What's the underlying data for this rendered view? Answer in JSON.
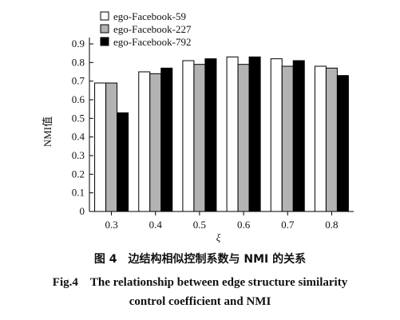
{
  "chart_data": {
    "type": "bar",
    "categories": [
      "0.3",
      "0.4",
      "0.5",
      "0.6",
      "0.7",
      "0.8"
    ],
    "series": [
      {
        "name": "ego-Facebook-59",
        "values": [
          0.69,
          0.75,
          0.81,
          0.83,
          0.82,
          0.78
        ],
        "color": "#ffffff"
      },
      {
        "name": "ego-Facebook-227",
        "values": [
          0.69,
          0.74,
          0.79,
          0.79,
          0.78,
          0.77
        ],
        "color": "#b3b3b3"
      },
      {
        "name": "ego-Facebook-792",
        "values": [
          0.53,
          0.77,
          0.82,
          0.83,
          0.81,
          0.73
        ],
        "color": "#000000"
      }
    ],
    "xlabel": "ξ",
    "ylabel": "NMI值",
    "ylim": [
      0,
      0.9
    ],
    "yticks": [
      "0",
      "0.1",
      "0.2",
      "0.3",
      "0.4",
      "0.5",
      "0.6",
      "0.7",
      "0.8",
      "0.9"
    ],
    "legend_position": "top-left",
    "grid": false
  },
  "caption": {
    "zh": "图 4　边结构相似控制系数与 NMI 的关系",
    "en_line1": "Fig.4　The relationship between edge structure similarity",
    "en_line2": "control coefficient and NMI"
  }
}
